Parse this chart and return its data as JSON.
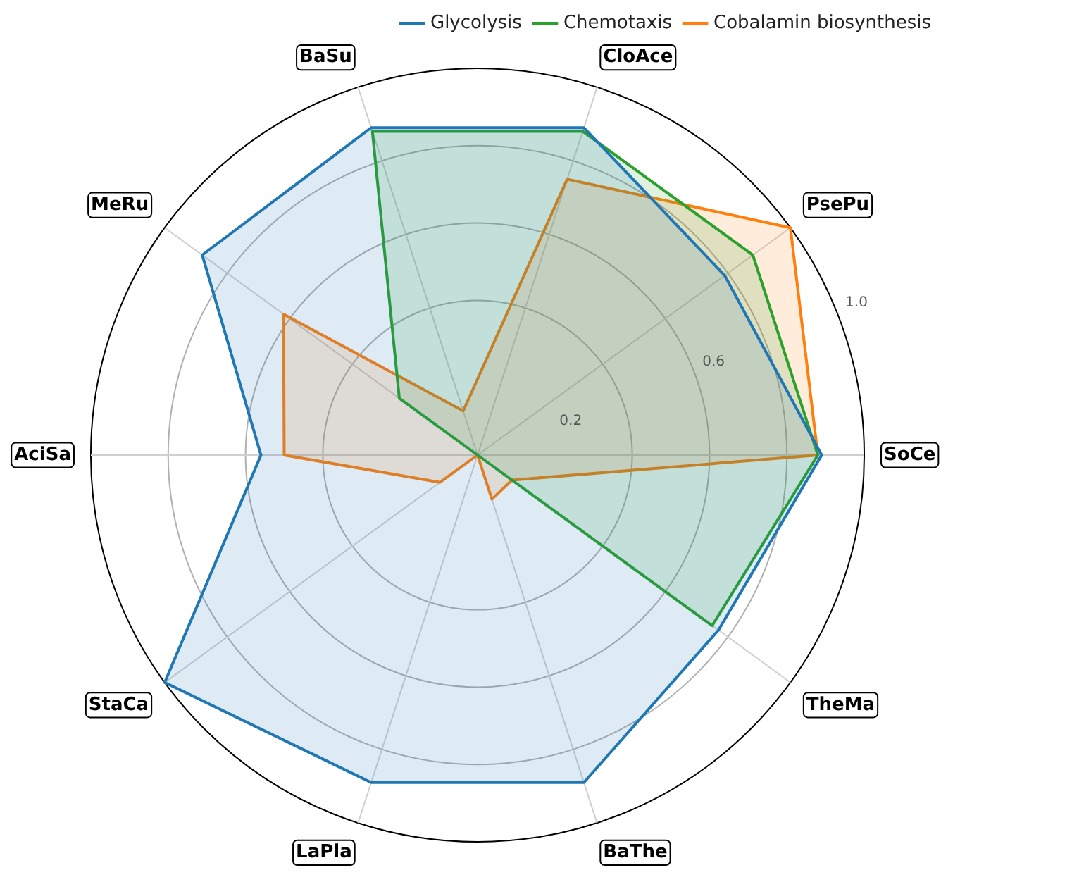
{
  "chart_data": {
    "type": "radar",
    "categories": [
      "CloAce",
      "PsePu",
      "SoCe",
      "TheMa",
      "BaThe",
      "LaPla",
      "StaCa",
      "AciSa",
      "MeRu",
      "BaSu"
    ],
    "series": [
      {
        "name": "Glycolysis",
        "color": "#1f77b4",
        "values": [
          0.89,
          0.79,
          0.89,
          0.77,
          0.89,
          0.89,
          1.0,
          0.56,
          0.88,
          0.89
        ]
      },
      {
        "name": "Chemotaxis",
        "color": "#2ca02c",
        "values": [
          0.88,
          0.88,
          0.88,
          0.75,
          0,
          0,
          0,
          0,
          0.25,
          0.88
        ]
      },
      {
        "name": "Cobalamin biosynthesis",
        "color": "#ff7f0e",
        "values": [
          0.75,
          1.0,
          0.88,
          0.11,
          0.12,
          0,
          0.12,
          0.5,
          0.62,
          0.12
        ]
      }
    ],
    "ylim": [
      0,
      1.0
    ],
    "yticks": [
      0.2,
      0.6,
      {
        "value": 1.0,
        "label": "1.0"
      }
    ],
    "grid": true,
    "legend": "top right",
    "marker": "none",
    "line_style": "solid"
  }
}
